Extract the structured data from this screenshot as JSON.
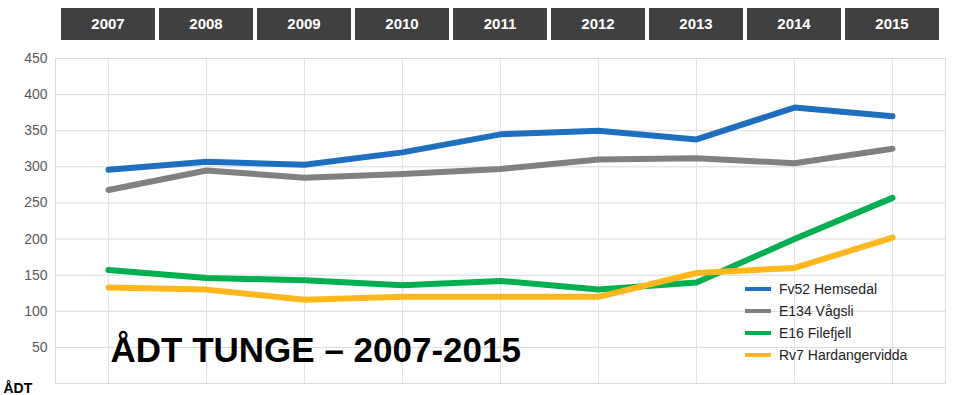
{
  "chart_data": {
    "type": "line",
    "title": "ÅDT TUNGE – 2007-2015",
    "y_label": "ÅDT",
    "categories": [
      "2007",
      "2008",
      "2009",
      "2010",
      "2011",
      "2012",
      "2013",
      "2014",
      "2015"
    ],
    "series": [
      {
        "name": "Fv52 Hemsedal",
        "color": "#1f6fc0",
        "values": [
          296,
          307,
          303,
          320,
          345,
          350,
          338,
          382,
          370
        ]
      },
      {
        "name": "E134 Vågsli",
        "color": "#808080",
        "values": [
          268,
          295,
          285,
          290,
          297,
          310,
          312,
          305,
          325
        ]
      },
      {
        "name": "E16 Filefjell",
        "color": "#00b050",
        "values": [
          157,
          146,
          143,
          136,
          142,
          130,
          140,
          200,
          257
        ]
      },
      {
        "name": "Rv7 Hardangervidda",
        "color": "#ffb71c",
        "values": [
          133,
          130,
          116,
          120,
          120,
          120,
          153,
          160,
          202
        ]
      }
    ],
    "ylim": [
      0,
      450
    ],
    "yticks": [
      50,
      100,
      150,
      200,
      250,
      300,
      350,
      400,
      450
    ],
    "grid": true,
    "legend": "bottom-right",
    "line_style": "solid"
  }
}
